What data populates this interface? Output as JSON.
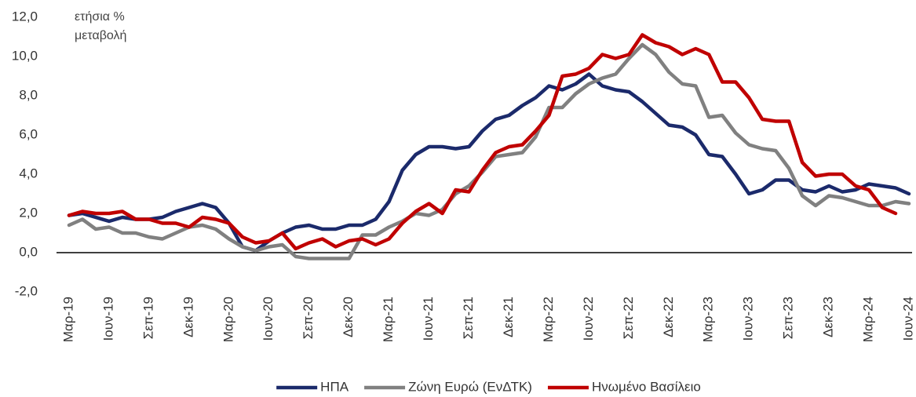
{
  "chart_data": {
    "type": "line",
    "y_label": [
      "ετήσια %",
      "μεταβολή"
    ],
    "categories": [
      "Μαρ-19",
      null,
      null,
      "Ιουν-19",
      null,
      null,
      "Σεπ-19",
      null,
      null,
      "Δεκ-19",
      null,
      null,
      "Μαρ-20",
      null,
      null,
      "Ιουν-20",
      null,
      null,
      "Σεπ-20",
      null,
      null,
      "Δεκ-20",
      null,
      null,
      "Μαρ-21",
      null,
      null,
      "Ιουν-21",
      null,
      null,
      "Σεπ-21",
      null,
      null,
      "Δεκ-21",
      null,
      null,
      "Μαρ-22",
      null,
      null,
      "Ιουν-22",
      null,
      null,
      "Σεπ-22",
      null,
      null,
      "Δεκ-22",
      null,
      null,
      "Μαρ-23",
      null,
      null,
      "Ιουν-23",
      null,
      null,
      "Σεπ-23",
      null,
      null,
      "Δεκ-23",
      null,
      null,
      "Μαρ-24",
      null,
      null,
      "Ιουν-24"
    ],
    "series": [
      {
        "name": "ΗΠΑ",
        "color": "#1b2a6b",
        "values": [
          1.9,
          2.0,
          1.8,
          1.6,
          1.8,
          1.7,
          1.7,
          1.8,
          2.1,
          2.3,
          2.5,
          2.3,
          1.5,
          0.3,
          0.1,
          0.6,
          1.0,
          1.3,
          1.4,
          1.2,
          1.2,
          1.4,
          1.4,
          1.7,
          2.6,
          4.2,
          5.0,
          5.4,
          5.4,
          5.3,
          5.4,
          6.2,
          6.8,
          7.0,
          7.5,
          7.9,
          8.5,
          8.3,
          8.6,
          9.1,
          8.5,
          8.3,
          8.2,
          7.7,
          7.1,
          6.5,
          6.4,
          6.0,
          5.0,
          4.9,
          4.0,
          3.0,
          3.2,
          3.7,
          3.7,
          3.2,
          3.1,
          3.4,
          3.1,
          3.2,
          3.5,
          3.4,
          3.3,
          3.0
        ]
      },
      {
        "name": "Ζώνη Ευρώ (ΕνΔΤΚ)",
        "color": "#808080",
        "values": [
          1.4,
          1.7,
          1.2,
          1.3,
          1.0,
          1.0,
          0.8,
          0.7,
          1.0,
          1.3,
          1.4,
          1.2,
          0.7,
          0.3,
          0.1,
          0.3,
          0.4,
          -0.2,
          -0.3,
          -0.3,
          -0.3,
          -0.3,
          0.9,
          0.9,
          1.3,
          1.6,
          2.0,
          1.9,
          2.2,
          3.0,
          3.4,
          4.1,
          4.9,
          5.0,
          5.1,
          5.9,
          7.4,
          7.4,
          8.1,
          8.6,
          8.9,
          9.1,
          9.9,
          10.6,
          10.1,
          9.2,
          8.6,
          8.5,
          6.9,
          7.0,
          6.1,
          5.5,
          5.3,
          5.2,
          4.3,
          2.9,
          2.4,
          2.9,
          2.8,
          2.6,
          2.4,
          2.4,
          2.6,
          2.5
        ]
      },
      {
        "name": "Ηνωμένο Βασίλειο",
        "color": "#c00000",
        "values": [
          1.9,
          2.1,
          2.0,
          2.0,
          2.1,
          1.7,
          1.7,
          1.5,
          1.5,
          1.3,
          1.8,
          1.7,
          1.5,
          0.8,
          0.5,
          0.6,
          1.0,
          0.2,
          0.5,
          0.7,
          0.3,
          0.6,
          0.7,
          0.4,
          0.7,
          1.5,
          2.1,
          2.5,
          2.0,
          3.2,
          3.1,
          4.2,
          5.1,
          5.4,
          5.5,
          6.2,
          7.0,
          9.0,
          9.1,
          9.4,
          10.1,
          9.9,
          10.1,
          11.1,
          10.7,
          10.5,
          10.1,
          10.4,
          10.1,
          8.7,
          8.7,
          7.9,
          6.8,
          6.7,
          6.7,
          4.6,
          3.9,
          4.0,
          4.0,
          3.4,
          3.2,
          2.3,
          2.0,
          null
        ]
      }
    ],
    "ylim": [
      -2,
      12
    ],
    "yticks": [
      {
        "value": -2,
        "label": "-2,0"
      },
      {
        "value": 0,
        "label": "0,0"
      },
      {
        "value": 2,
        "label": "2,0"
      },
      {
        "value": 4,
        "label": "4,0"
      },
      {
        "value": 6,
        "label": "6,0"
      },
      {
        "value": 8,
        "label": "8,0"
      },
      {
        "value": 10,
        "label": "10,0"
      },
      {
        "value": 12,
        "label": "12,0"
      }
    ],
    "legend": "bottom"
  }
}
